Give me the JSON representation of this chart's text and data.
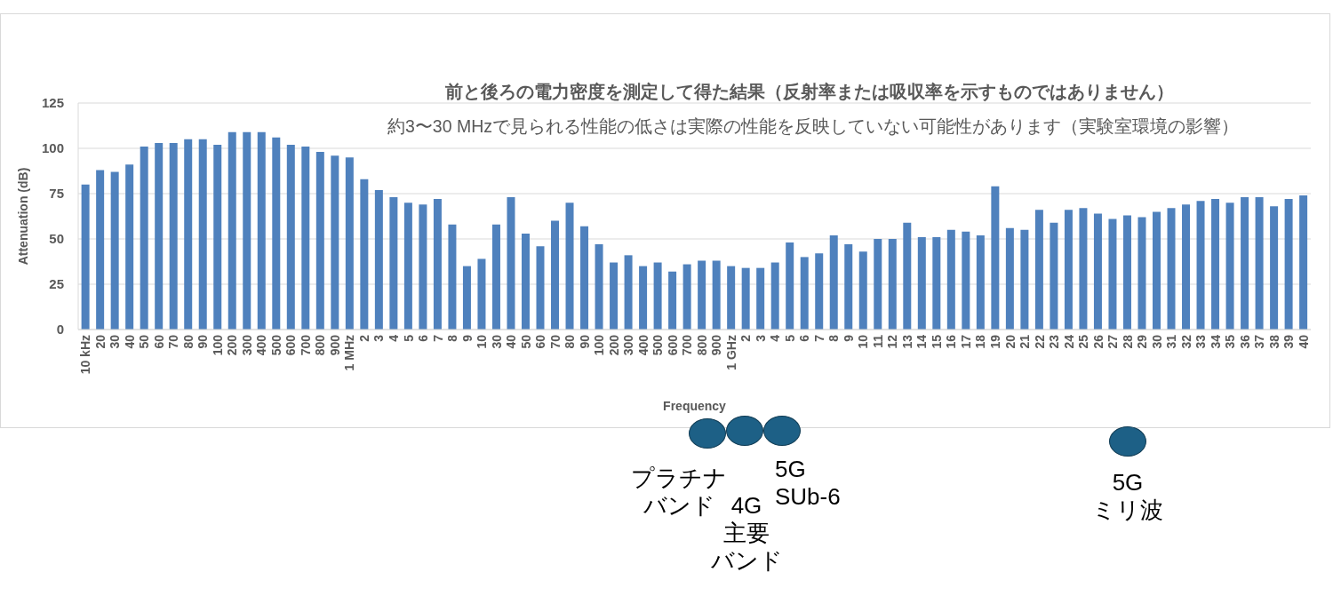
{
  "chart_data": {
    "type": "bar",
    "title": "前と後ろの電力密度を測定して得た結果（反射率または吸収率を示すものではありません）",
    "subtitle": "約3〜30 MHzで見られる性能の低さは実際の性能を反映していない可能性があります（実験室環境の影響）",
    "xlabel": "Frequency",
    "ylabel": "Attenuation (dB)",
    "categories": [
      "10 kHz",
      "20",
      "30",
      "40",
      "50",
      "60",
      "70",
      "80",
      "90",
      "100",
      "200",
      "300",
      "400",
      "500",
      "600",
      "700",
      "800",
      "900",
      "1 MHz",
      "2",
      "3",
      "4",
      "5",
      "6",
      "7",
      "8",
      "9",
      "10",
      "30",
      "40",
      "50",
      "60",
      "70",
      "80",
      "90",
      "100",
      "200",
      "300",
      "400",
      "500",
      "600",
      "700",
      "800",
      "900",
      "1 GHz",
      "2",
      "3",
      "4",
      "5",
      "6",
      "7",
      "8",
      "9",
      "10",
      "11",
      "12",
      "13",
      "14",
      "15",
      "16",
      "17",
      "18",
      "19",
      "20",
      "21",
      "22",
      "23",
      "24",
      "25",
      "26",
      "27",
      "28",
      "29",
      "30",
      "31",
      "32",
      "33",
      "34",
      "35",
      "36",
      "37",
      "38",
      "39",
      "40"
    ],
    "values": [
      80,
      88,
      87,
      91,
      101,
      103,
      103,
      105,
      105,
      102,
      109,
      109,
      109,
      106,
      102,
      101,
      98,
      96,
      95,
      83,
      77,
      73,
      70,
      69,
      72,
      58,
      35,
      39,
      58,
      73,
      53,
      46,
      60,
      70,
      57,
      47,
      37,
      41,
      35,
      37,
      32,
      36,
      38,
      38,
      35,
      34,
      34,
      37,
      48,
      40,
      42,
      52,
      47,
      43,
      50,
      50,
      59,
      51,
      51,
      55,
      54,
      52,
      79,
      56,
      55,
      66,
      59,
      66,
      67,
      64,
      61,
      63,
      62,
      65,
      67,
      69,
      71,
      72,
      70,
      73,
      73,
      68,
      72,
      74
    ],
    "color": "#4f81bd",
    "ylim": [
      0,
      125
    ],
    "yticks": [
      0,
      25,
      50,
      75,
      100,
      125
    ],
    "grid": "y",
    "annotations": [
      "プラチナバンド",
      "4G\n主要バンド",
      "5G\nSUb-6",
      "5G\nミリ波"
    ]
  }
}
